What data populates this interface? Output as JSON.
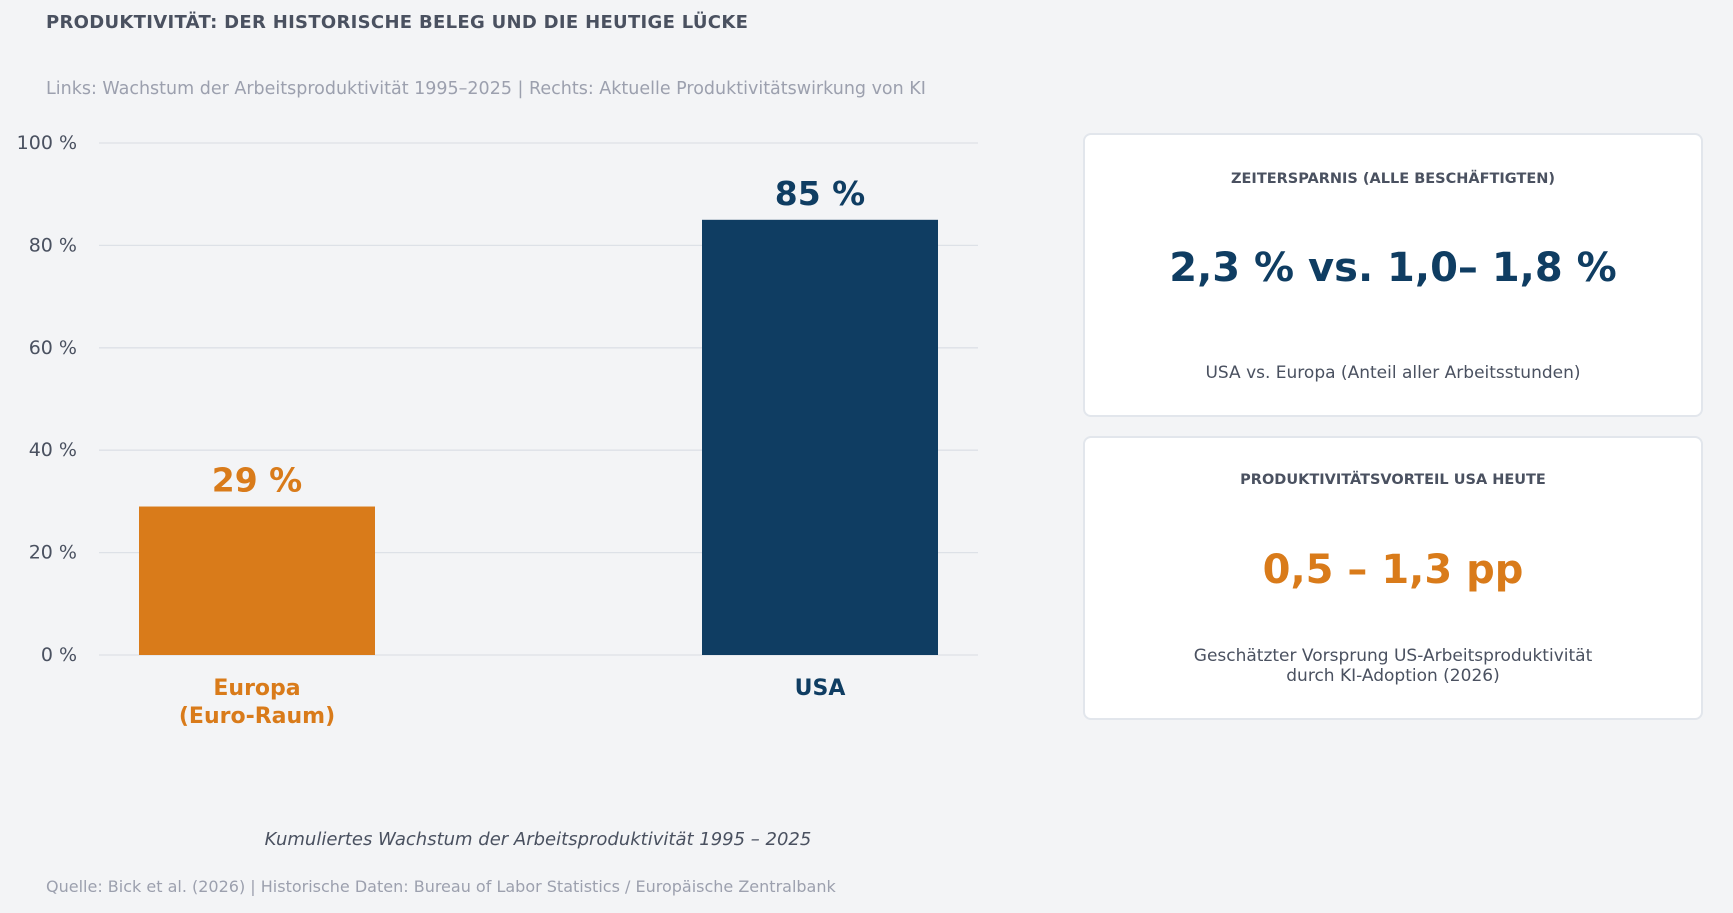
{
  "header": {
    "title": "PRODUKTIVITÄT: DER HISTORISCHE BELEG UND DIE HEUTIGE LÜCKE",
    "subtitle": "Links: Wachstum der Arbeitsproduktivität 1995–2025 | Rechts: Aktuelle Produktivitätswirkung von KI"
  },
  "colors": {
    "europe": "#d97b1a",
    "usa": "#0f3d62",
    "grid": "#dde1e7",
    "background": "#f3f4f6"
  },
  "chart_data": {
    "type": "bar",
    "categories": [
      "Europa\n(Euro-Raum)",
      "USA"
    ],
    "values": [
      29,
      85
    ],
    "data_labels": [
      "29 %",
      "85 %"
    ],
    "ylim": [
      0,
      100
    ],
    "yticks": [
      0,
      20,
      40,
      60,
      80,
      100
    ],
    "ytick_labels": [
      "0 %",
      "20 %",
      "40 %",
      "60 %",
      "80 %",
      "100 %"
    ],
    "xlabel": "Kumuliertes Wachstum der Arbeitsproduktivität 1995 – 2025",
    "grid": true
  },
  "cards": [
    {
      "title": "ZEITERSPARNIS (ALLE BESCHÄFTIGTEN)",
      "value": "2,3 % vs. 1,0– 1,8 %",
      "subtitle": "USA vs. Europa (Anteil aller Arbeitsstunden)",
      "color": "#0f3d62"
    },
    {
      "title": "PRODUKTIVITÄTSVORTEIL USA HEUTE",
      "value": "0,5 – 1,3 pp",
      "subtitle": "Geschätzter Vorsprung US-Arbeitsproduktivität\ndurch KI-Adoption (2026)",
      "color": "#d97b1a"
    }
  ],
  "footer": {
    "source": "Quelle: Bick et al. (2026) | Historische Daten: Bureau of Labor Statistics / Europäische Zentralbank"
  }
}
